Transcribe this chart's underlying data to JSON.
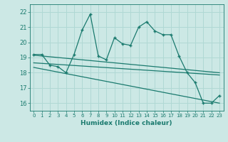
{
  "xlabel": "Humidex (Indice chaleur)",
  "xlim": [
    -0.5,
    23.5
  ],
  "ylim": [
    15.5,
    22.5
  ],
  "yticks": [
    16,
    17,
    18,
    19,
    20,
    21,
    22
  ],
  "xticks": [
    0,
    1,
    2,
    3,
    4,
    5,
    6,
    7,
    8,
    9,
    10,
    11,
    12,
    13,
    14,
    15,
    16,
    17,
    18,
    19,
    20,
    21,
    22,
    23
  ],
  "xtick_labels": [
    "0",
    "1",
    "2",
    "3",
    "4",
    "5",
    "6",
    "7",
    "8",
    "9",
    "10",
    "11",
    "12",
    "13",
    "14",
    "15",
    "16",
    "17",
    "18",
    "19",
    "20",
    "21",
    "22",
    "23"
  ],
  "main_x": [
    0,
    1,
    2,
    3,
    4,
    5,
    6,
    7,
    8,
    9,
    10,
    11,
    12,
    13,
    14,
    15,
    16,
    17,
    18,
    19,
    20,
    21,
    22,
    23
  ],
  "main_y": [
    19.2,
    19.2,
    18.5,
    18.4,
    18.0,
    19.2,
    20.8,
    21.85,
    19.1,
    18.85,
    20.3,
    19.9,
    19.8,
    21.0,
    21.35,
    20.75,
    20.5,
    20.5,
    19.1,
    18.0,
    17.35,
    16.0,
    16.0,
    16.5
  ],
  "line_color": "#1a7a6e",
  "bg_color": "#cce8e5",
  "grid_color": "#b0d8d4",
  "trend1_x": [
    0,
    23
  ],
  "trend1_y": [
    19.15,
    18.0
  ],
  "trend2_x": [
    0,
    23
  ],
  "trend2_y": [
    18.65,
    17.85
  ],
  "trend3_x": [
    0,
    23
  ],
  "trend3_y": [
    18.35,
    16.0
  ],
  "font_color": "#1a7a6e"
}
